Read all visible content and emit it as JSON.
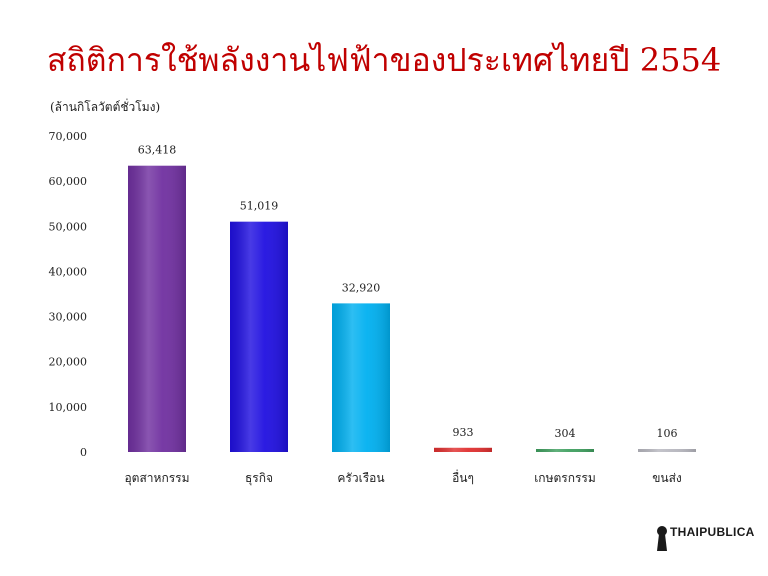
{
  "chart_data": {
    "type": "bar",
    "title": "สถิติการใช้พลังงานไฟฟ้าของประเทศไทยปี 2554",
    "ylabel": "(ล้านกิโลวัตต์ชั่วโมง)",
    "xlabel": "",
    "ylim": [
      0,
      70000
    ],
    "yticks": [
      "0",
      "10,000",
      "20,000",
      "30,000",
      "40,000",
      "50,000",
      "60,000",
      "70,000"
    ],
    "grid": false,
    "categories": [
      "อุตสาหกรรม",
      "ธุรกิจ",
      "ครัวเรือน",
      "อื่นๆ",
      "เกษตรกรรม",
      "ขนส่ง"
    ],
    "values": [
      63418,
      51019,
      32920,
      933,
      304,
      106
    ],
    "value_labels": [
      "63,418",
      "51,019",
      "32,920",
      "933",
      "304",
      "106"
    ],
    "colors": [
      "#7030a0",
      "#2010e0",
      "#00b0f0",
      "#e03030",
      "#40a060",
      "#b8b8c0"
    ]
  },
  "branding": {
    "logo_text": "THAIPUBLICA",
    "logo_icon": "keyhole-icon"
  }
}
